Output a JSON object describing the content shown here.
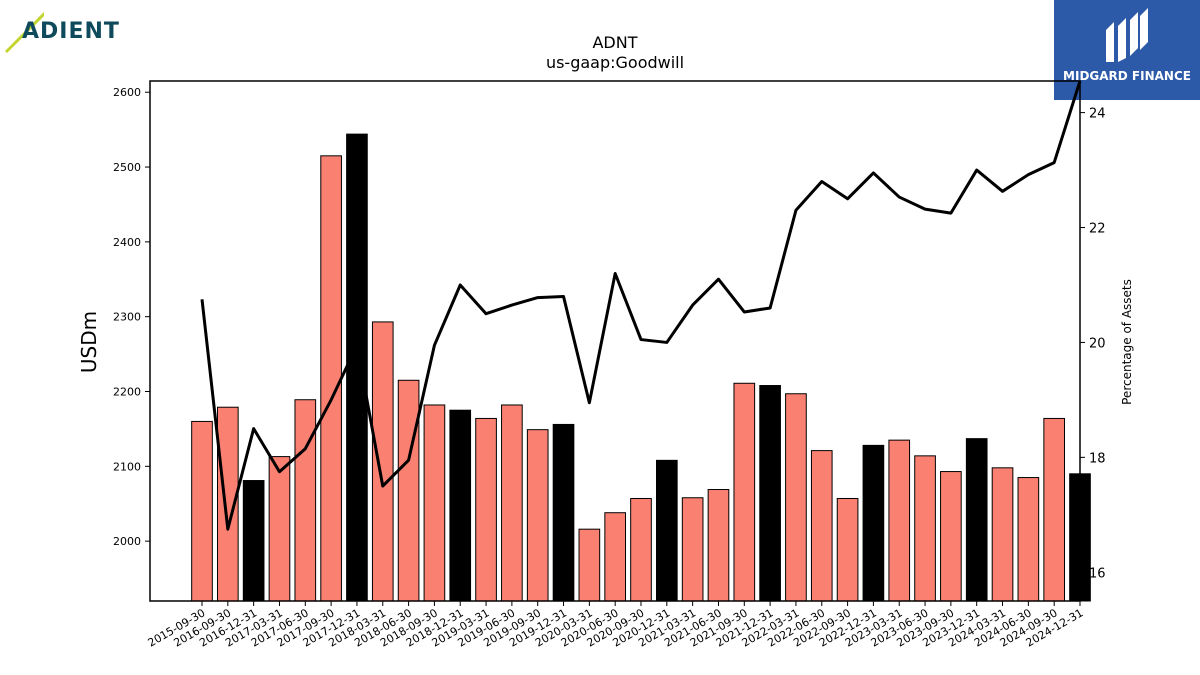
{
  "logos": {
    "left_text": "ADIENT",
    "right_text": "MIDGARD FINANCE"
  },
  "chart_data": {
    "type": "bar",
    "title": "ADNT",
    "subtitle": "us-gaap:Goodwill",
    "ylabel": "USDm",
    "y2label": "Percentage of Assets",
    "ylim": [
      1920,
      2615
    ],
    "y2lim": [
      15.5,
      24.55
    ],
    "yticks": [
      2000,
      2100,
      2200,
      2300,
      2400,
      2500,
      2600
    ],
    "y2ticks": [
      16,
      18,
      20,
      22,
      24
    ],
    "grid": false,
    "categories": [
      "2015-09-30",
      "2016-09-30",
      "2016-12-31",
      "2017-03-31",
      "2017-06-30",
      "2017-09-30",
      "2017-12-31",
      "2018-03-31",
      "2018-06-30",
      "2018-09-30",
      "2018-12-31",
      "2019-03-31",
      "2019-06-30",
      "2019-09-30",
      "2019-12-31",
      "2020-03-31",
      "2020-06-30",
      "2020-09-30",
      "2020-12-31",
      "2021-03-31",
      "2021-06-30",
      "2021-09-30",
      "2021-12-31",
      "2022-03-31",
      "2022-06-30",
      "2022-09-30",
      "2022-12-31",
      "2023-03-31",
      "2023-06-30",
      "2023-09-30",
      "2023-12-31",
      "2024-03-31",
      "2024-06-30",
      "2024-09-30",
      "2024-12-31"
    ],
    "series": [
      {
        "type": "bar",
        "values": [
          2160,
          2179,
          2081,
          2113,
          2189,
          2515,
          2544,
          2293,
          2215,
          2182,
          2175,
          2164,
          2182,
          2149,
          2156,
          2016,
          2038,
          2057,
          2108,
          2058,
          2069,
          2211,
          2208,
          2197,
          2121,
          2057,
          2128,
          2135,
          2114,
          2093,
          2137,
          2098,
          2085,
          2164,
          2090
        ],
        "colors": [
          "#fa8072",
          "#fa8072",
          "#000000",
          "#fa8072",
          "#fa8072",
          "#fa8072",
          "#000000",
          "#fa8072",
          "#fa8072",
          "#fa8072",
          "#000000",
          "#fa8072",
          "#fa8072",
          "#fa8072",
          "#000000",
          "#fa8072",
          "#fa8072",
          "#fa8072",
          "#000000",
          "#fa8072",
          "#fa8072",
          "#fa8072",
          "#000000",
          "#fa8072",
          "#fa8072",
          "#fa8072",
          "#000000",
          "#fa8072",
          "#fa8072",
          "#fa8072",
          "#000000",
          "#fa8072",
          "#fa8072",
          "#fa8072",
          "#000000"
        ]
      },
      {
        "type": "line",
        "axis": "right",
        "color": "#000000",
        "values": [
          20.75,
          16.75,
          18.5,
          17.75,
          18.15,
          19.0,
          19.95,
          17.5,
          17.95,
          19.95,
          21.0,
          20.5,
          20.65,
          20.78,
          20.8,
          18.95,
          21.2,
          20.05,
          20.0,
          20.65,
          21.1,
          20.53,
          20.6,
          22.3,
          22.8,
          22.5,
          22.95,
          22.53,
          22.32,
          22.25,
          23.0,
          22.63,
          22.92,
          23.13,
          24.55
        ]
      }
    ],
    "colors": {
      "bar": "#fa8072",
      "bar_alt": "#000000",
      "line": "#000000",
      "axis": "#000000"
    }
  }
}
